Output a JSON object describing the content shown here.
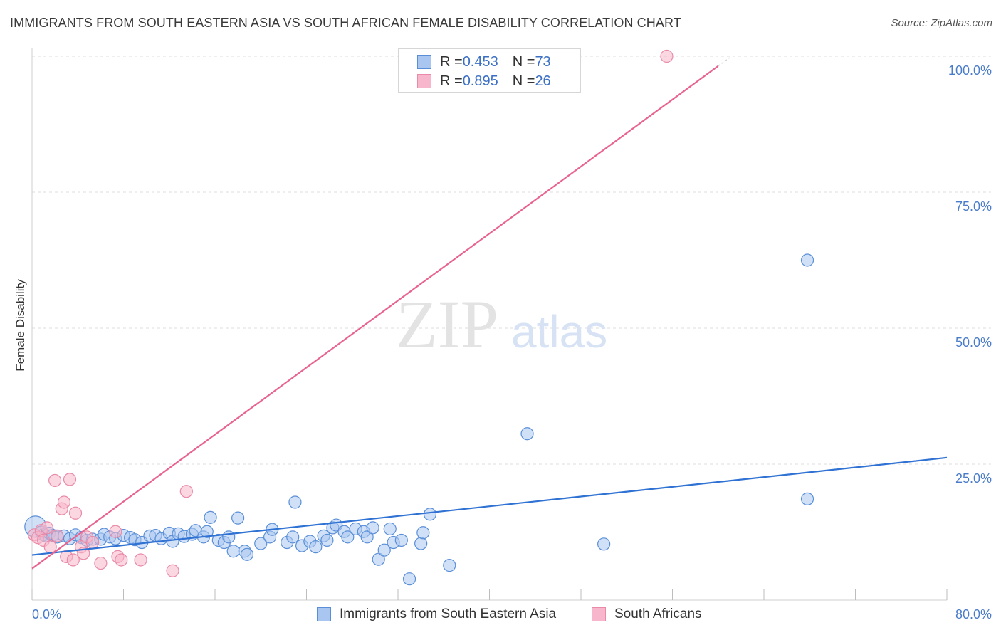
{
  "header": {
    "title": "IMMIGRANTS FROM SOUTH EASTERN ASIA VS SOUTH AFRICAN FEMALE DISABILITY CORRELATION CHART",
    "source": "Source: ZipAtlas.com"
  },
  "watermark": {
    "zip": "ZIP",
    "atlas": "atlas"
  },
  "legend": {
    "rows": [
      {
        "r_label": "R = ",
        "r_value": "0.453",
        "n_label": "N = ",
        "n_value": "73"
      },
      {
        "r_label": "R = ",
        "r_value": "0.895",
        "n_label": "N = ",
        "n_value": "26"
      }
    ]
  },
  "bottom_legend": {
    "series_a": "Immigrants from South Eastern Asia",
    "series_b": "South Africans"
  },
  "colors": {
    "blue_fill": "#a9c6f0",
    "blue_stroke": "#5a8fd8",
    "blue_line": "#2f72d4",
    "pink_fill": "#f7b6cb",
    "pink_stroke": "#e98aa8",
    "pink_line": "#e8648f",
    "grid": "#dcdcdc",
    "tick_text": "#4a7cc9"
  },
  "chart_data": {
    "type": "scatter",
    "title": "IMMIGRANTS FROM SOUTH EASTERN ASIA VS SOUTH AFRICAN FEMALE DISABILITY CORRELATION CHART",
    "xlabel": "",
    "ylabel": "Female Disability",
    "xlim": [
      0,
      80
    ],
    "ylim": [
      0,
      100
    ],
    "x_tick_labels": [
      "0.0%",
      "80.0%"
    ],
    "y_ticks": [
      25,
      50,
      75,
      100
    ],
    "y_tick_labels": [
      "25.0%",
      "50.0%",
      "75.0%",
      "100.0%"
    ],
    "series": [
      {
        "name": "Immigrants from South Eastern Asia",
        "r": 0.453,
        "n": 73,
        "trend": {
          "x0": 0,
          "y0": 8.3,
          "x1": 80,
          "y1": 26.2
        },
        "points": [
          [
            0.3,
            13.5
          ],
          [
            0.8,
            12.5
          ],
          [
            1.0,
            12.0
          ],
          [
            1.2,
            11.8
          ],
          [
            1.5,
            12.3
          ],
          [
            1.8,
            11.9
          ],
          [
            2.2,
            11.6
          ],
          [
            2.8,
            11.8
          ],
          [
            3.3,
            11.3
          ],
          [
            3.8,
            12.0
          ],
          [
            4.3,
            11.5
          ],
          [
            4.8,
            11.0
          ],
          [
            5.3,
            11.2
          ],
          [
            6.0,
            11.2
          ],
          [
            6.3,
            12.1
          ],
          [
            6.8,
            11.6
          ],
          [
            7.3,
            11.3
          ],
          [
            8.0,
            11.9
          ],
          [
            8.6,
            11.5
          ],
          [
            9.0,
            11.1
          ],
          [
            9.6,
            10.6
          ],
          [
            10.3,
            11.8
          ],
          [
            10.8,
            11.9
          ],
          [
            11.3,
            11.3
          ],
          [
            12.0,
            12.3
          ],
          [
            12.3,
            10.8
          ],
          [
            12.8,
            12.2
          ],
          [
            13.3,
            11.7
          ],
          [
            14.0,
            12.1
          ],
          [
            14.3,
            12.8
          ],
          [
            15.0,
            11.6
          ],
          [
            15.3,
            12.6
          ],
          [
            15.6,
            15.2
          ],
          [
            16.3,
            11.0
          ],
          [
            16.8,
            10.6
          ],
          [
            17.2,
            11.6
          ],
          [
            17.6,
            9.0
          ],
          [
            18.0,
            15.1
          ],
          [
            18.6,
            9.0
          ],
          [
            18.8,
            8.4
          ],
          [
            20.0,
            10.4
          ],
          [
            20.8,
            11.6
          ],
          [
            21.0,
            13.0
          ],
          [
            22.3,
            10.6
          ],
          [
            22.8,
            11.6
          ],
          [
            23.0,
            18.0
          ],
          [
            23.6,
            10.0
          ],
          [
            24.3,
            10.8
          ],
          [
            24.8,
            9.8
          ],
          [
            25.5,
            11.8
          ],
          [
            25.8,
            11.0
          ],
          [
            26.3,
            13.3
          ],
          [
            26.6,
            13.8
          ],
          [
            27.3,
            12.6
          ],
          [
            27.6,
            11.6
          ],
          [
            28.3,
            13.1
          ],
          [
            29.0,
            12.6
          ],
          [
            29.3,
            11.6
          ],
          [
            29.8,
            13.3
          ],
          [
            30.3,
            7.5
          ],
          [
            30.8,
            9.2
          ],
          [
            31.3,
            13.1
          ],
          [
            31.6,
            10.6
          ],
          [
            32.3,
            11.0
          ],
          [
            33.0,
            3.9
          ],
          [
            34.0,
            10.4
          ],
          [
            34.2,
            12.4
          ],
          [
            34.8,
            15.8
          ],
          [
            36.5,
            6.4
          ],
          [
            43.3,
            30.6
          ],
          [
            50.0,
            10.3
          ],
          [
            67.8,
            18.6
          ],
          [
            67.8,
            62.5
          ]
        ]
      },
      {
        "name": "South Africans",
        "r": 0.895,
        "n": 26,
        "trend": {
          "x0": 0,
          "y0": 5.8,
          "x1": 60,
          "y1": 98.2
        },
        "points": [
          [
            0.2,
            12.0
          ],
          [
            0.5,
            11.5
          ],
          [
            0.8,
            12.8
          ],
          [
            1.0,
            11.0
          ],
          [
            1.3,
            13.3
          ],
          [
            1.6,
            9.8
          ],
          [
            2.0,
            22.0
          ],
          [
            2.2,
            11.8
          ],
          [
            2.6,
            16.8
          ],
          [
            2.8,
            18.0
          ],
          [
            3.0,
            8.0
          ],
          [
            3.3,
            22.2
          ],
          [
            3.6,
            7.4
          ],
          [
            3.8,
            16.0
          ],
          [
            4.3,
            9.8
          ],
          [
            4.5,
            8.6
          ],
          [
            4.8,
            11.6
          ],
          [
            5.3,
            10.6
          ],
          [
            6.0,
            6.8
          ],
          [
            7.3,
            12.6
          ],
          [
            7.5,
            8.0
          ],
          [
            7.8,
            7.4
          ],
          [
            9.5,
            7.4
          ],
          [
            12.3,
            5.4
          ],
          [
            13.5,
            20.0
          ],
          [
            55.5,
            100.0
          ]
        ]
      }
    ]
  }
}
